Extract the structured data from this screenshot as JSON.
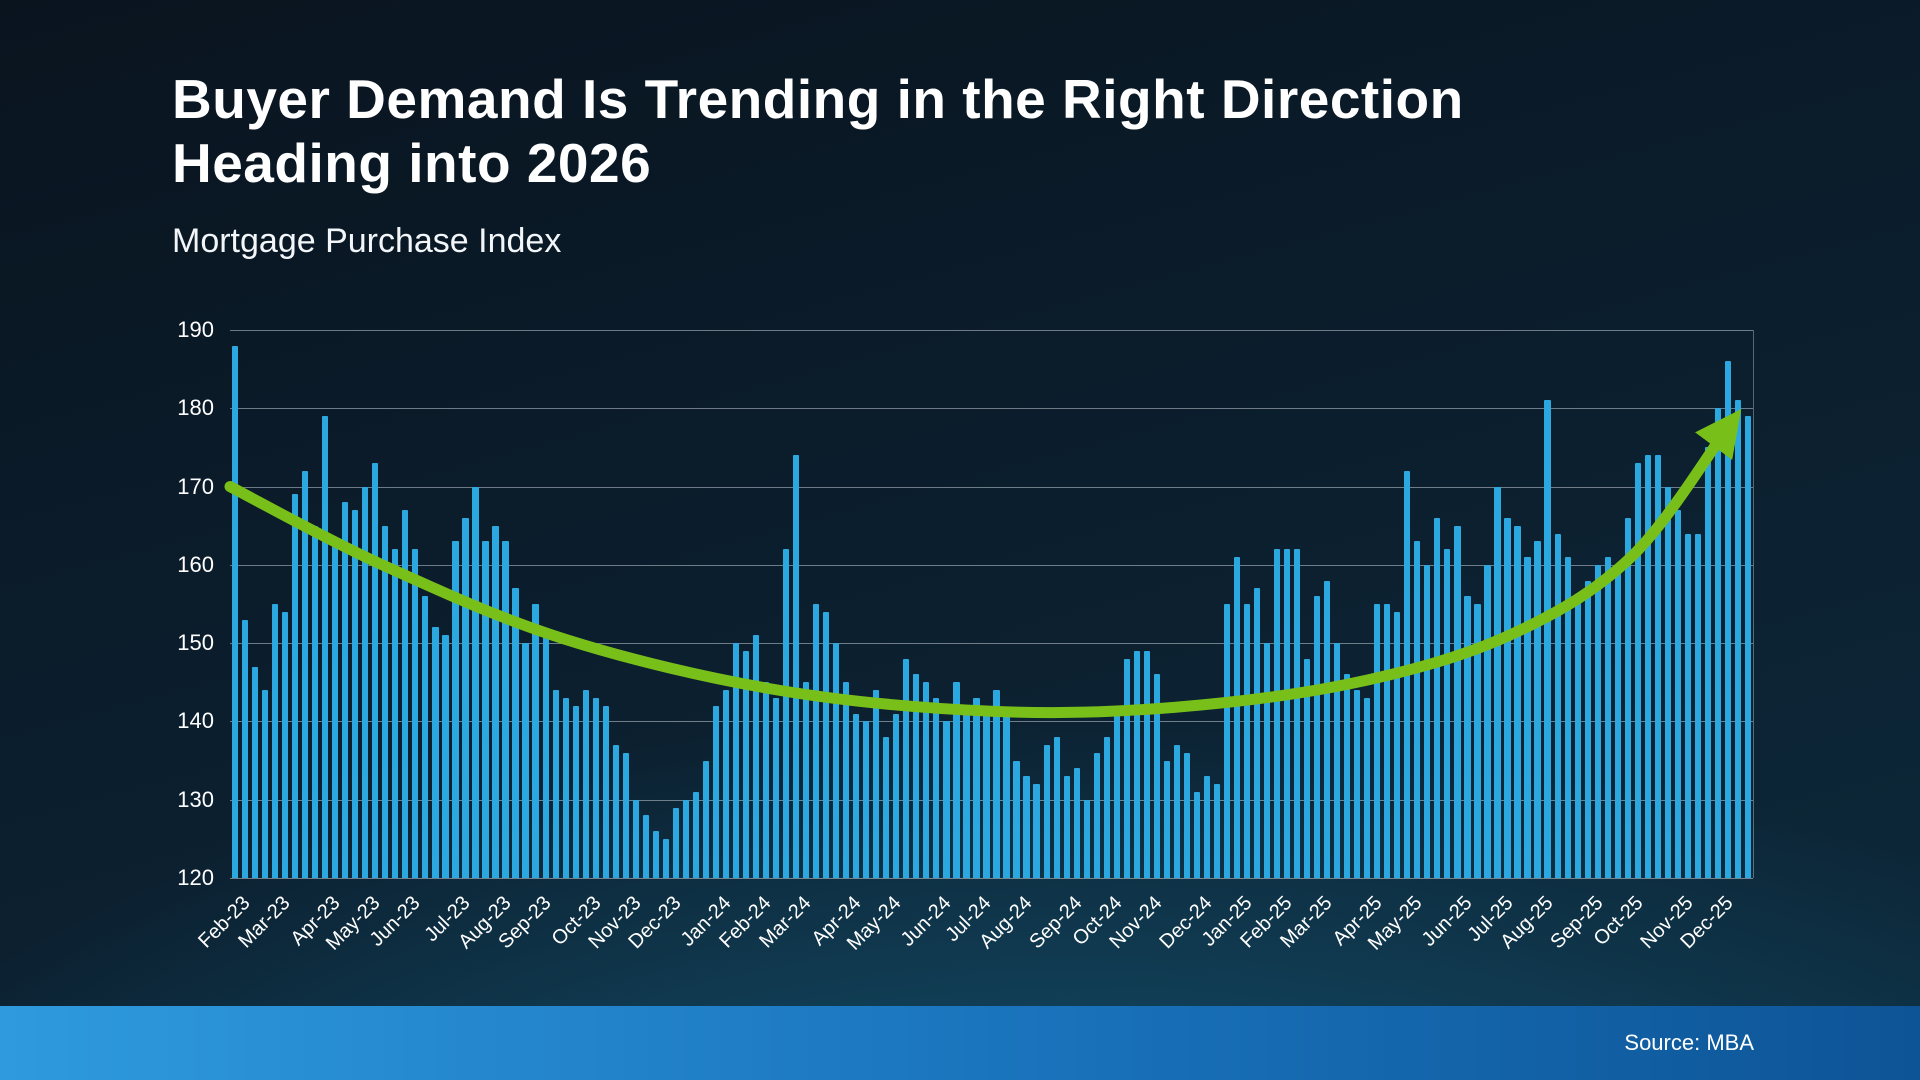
{
  "header": {
    "title_line1": "Buyer Demand Is Trending in the Right Direction",
    "title_line2": "Heading into 2026",
    "subtitle": "Mortgage Purchase Index"
  },
  "footer": {
    "source": "Source: MBA"
  },
  "colors": {
    "bar": "#2ca8e0",
    "trend": "#79bf1a",
    "gridline": "rgba(230,240,246,0.45)",
    "background_top": "#0a141f",
    "background_bottom": "#0d2a3c",
    "footer_left": "#2f9ade",
    "footer_right": "#0d5496"
  },
  "chart_data": {
    "type": "bar",
    "title": "Mortgage Purchase Index",
    "xlabel": "",
    "ylabel": "",
    "ylim": [
      120,
      190
    ],
    "y_ticks": [
      120,
      130,
      140,
      150,
      160,
      170,
      180,
      190
    ],
    "grid": true,
    "legend": "none",
    "categories": [
      "Feb-23",
      "Mar-23",
      "Apr-23",
      "May-23",
      "Jun-23",
      "Jul-23",
      "Aug-23",
      "Sep-23",
      "Oct-23",
      "Nov-23",
      "Dec-23",
      "Jan-24",
      "Feb-24",
      "Mar-24",
      "Apr-24",
      "May-24",
      "Jun-24",
      "Jul-24",
      "Aug-24",
      "Sep-24",
      "Oct-24",
      "Nov-24",
      "Dec-24",
      "Jan-25",
      "Feb-25",
      "Mar-25",
      "Apr-25",
      "May-25",
      "Jun-25",
      "Jul-25",
      "Aug-25",
      "Sep-25",
      "Oct-25",
      "Nov-25",
      "Dec-25"
    ],
    "series": [
      {
        "name": "Mortgage Purchase Index (weekly)",
        "values_by_month": [
          [
            188,
            153,
            147,
            144
          ],
          [
            155,
            154,
            169,
            172,
            165
          ],
          [
            179,
            163,
            168,
            167
          ],
          [
            170,
            173,
            165,
            162
          ],
          [
            167,
            162,
            156,
            152,
            151
          ],
          [
            163,
            166,
            170,
            163
          ],
          [
            165,
            163,
            157,
            150
          ],
          [
            155,
            151,
            144,
            143,
            142
          ],
          [
            144,
            143,
            142,
            137
          ],
          [
            136,
            130,
            128,
            126
          ],
          [
            125,
            129,
            130,
            131,
            135
          ],
          [
            142,
            144,
            150,
            149
          ],
          [
            151,
            145,
            143,
            162
          ],
          [
            174,
            145,
            155,
            154,
            150
          ],
          [
            145,
            141,
            140,
            144
          ],
          [
            138,
            141,
            148,
            146,
            145
          ],
          [
            143,
            140,
            145,
            141
          ],
          [
            143,
            141,
            144,
            141
          ],
          [
            135,
            133,
            132,
            137,
            138
          ],
          [
            133,
            134,
            130,
            136
          ],
          [
            138,
            141,
            148,
            149
          ],
          [
            149,
            146,
            135,
            137,
            136
          ],
          [
            131,
            133,
            132,
            155
          ],
          [
            161,
            155,
            157,
            150
          ],
          [
            162,
            162,
            162,
            148
          ],
          [
            156,
            158,
            150,
            146,
            144
          ],
          [
            143,
            155,
            155,
            154
          ],
          [
            172,
            163,
            160,
            166,
            162
          ],
          [
            165,
            156,
            155,
            160
          ],
          [
            170,
            166,
            165,
            161
          ],
          [
            163,
            181,
            164,
            161,
            156
          ],
          [
            158,
            160,
            161,
            160
          ],
          [
            166,
            173,
            174,
            174,
            170
          ],
          [
            167,
            164,
            164,
            175
          ],
          [
            180,
            186,
            181,
            179
          ]
        ]
      }
    ],
    "trend_line": {
      "style": "smooth-arrow",
      "color": "#79bf1a",
      "points": [
        {
          "t": 0.0,
          "value": 170
        },
        {
          "t": 0.1,
          "value": 160
        },
        {
          "t": 0.22,
          "value": 150.5
        },
        {
          "t": 0.36,
          "value": 144
        },
        {
          "t": 0.5,
          "value": 141.3
        },
        {
          "t": 0.62,
          "value": 141.8
        },
        {
          "t": 0.74,
          "value": 145
        },
        {
          "t": 0.84,
          "value": 151
        },
        {
          "t": 0.92,
          "value": 161
        },
        {
          "t": 0.985,
          "value": 178
        }
      ]
    }
  }
}
